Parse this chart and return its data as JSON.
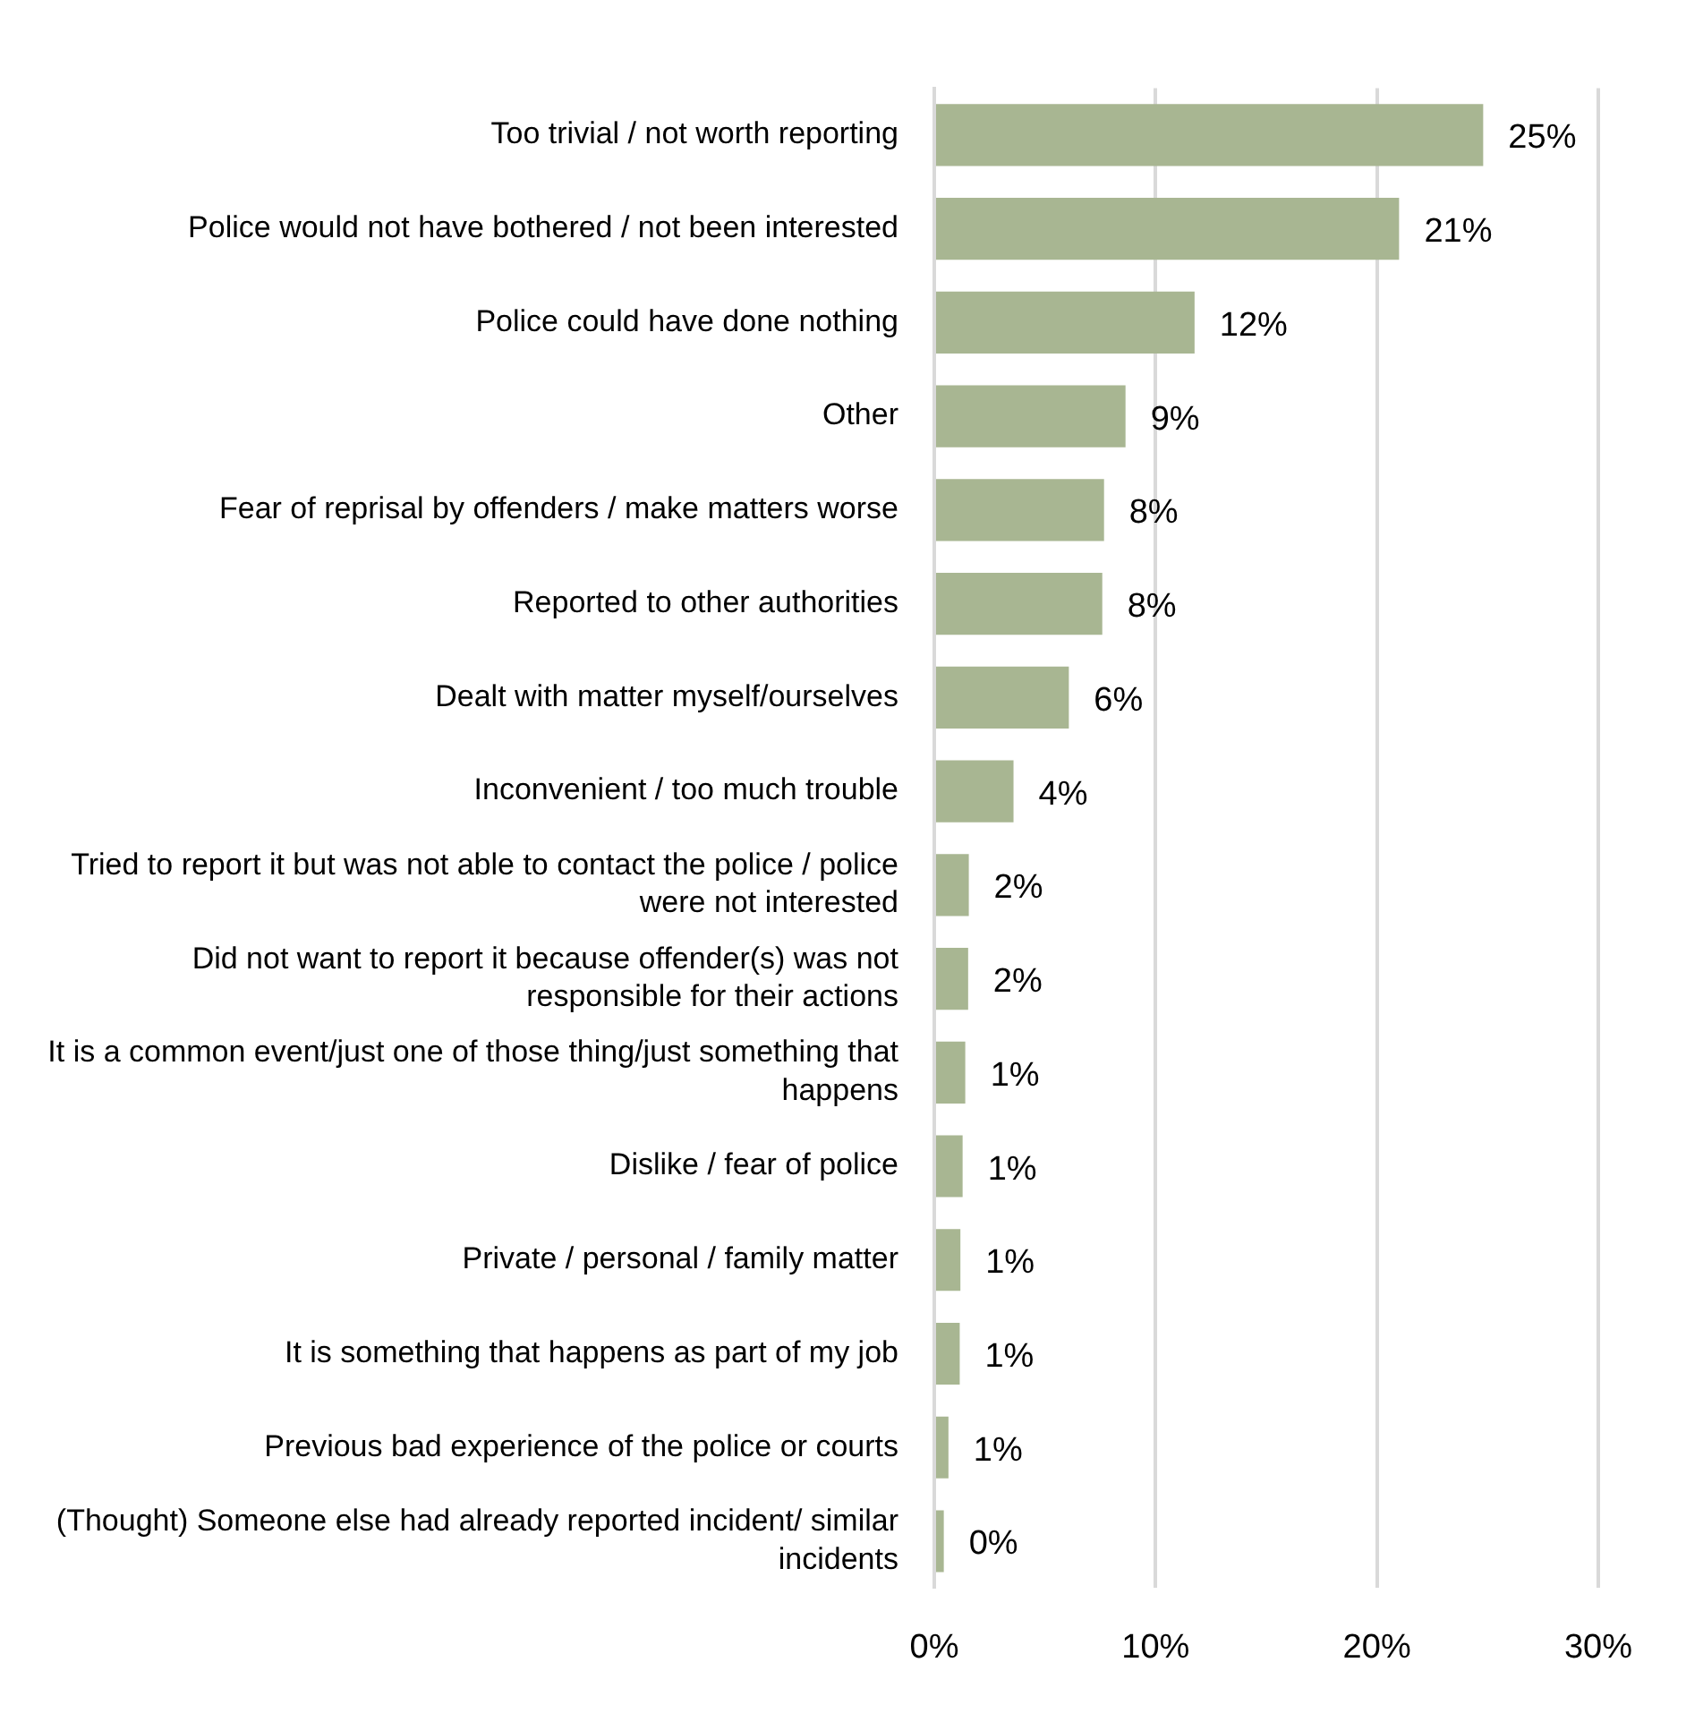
{
  "chart_data": {
    "type": "bar",
    "orientation": "horizontal",
    "categories": [
      "Too trivial / not worth reporting",
      "Police would not have bothered / not been interested",
      "Police could have done nothing",
      "Other",
      "Fear of reprisal by offenders / make matters worse",
      "Reported to other authorities",
      "Dealt with matter myself/ourselves",
      "Inconvenient / too much trouble",
      "Tried to report it but was not able to contact the police / police were not interested",
      "Did not want to report it because offender(s) was not responsible for their actions",
      "It is a common event/just one of those thing/just something that happens",
      "Dislike / fear of police",
      "Private / personal / family matter",
      "It is something that happens as part of my job",
      "Previous bad experience of the police or courts",
      "(Thought) Someone else had already reported incident/ similar incidents"
    ],
    "values": [
      24.8,
      21.0,
      11.76,
      8.64,
      7.67,
      7.59,
      6.08,
      3.58,
      1.56,
      1.53,
      1.4,
      1.28,
      1.18,
      1.15,
      0.64,
      0.43
    ],
    "value_labels": [
      "25%",
      "21%",
      "12%",
      "9%",
      "8%",
      "8%",
      "6%",
      "4%",
      "2%",
      "2%",
      "1%",
      "1%",
      "1%",
      "1%",
      "1%",
      "0%"
    ],
    "color": "#a8b692",
    "xlim": [
      0,
      30
    ],
    "xticks": [
      {
        "value": 0,
        "label": "0%"
      },
      {
        "value": 10,
        "label": "10%"
      },
      {
        "value": 20,
        "label": "20%"
      },
      {
        "value": 30,
        "label": "30%"
      }
    ],
    "grid": "x",
    "legend": false
  }
}
